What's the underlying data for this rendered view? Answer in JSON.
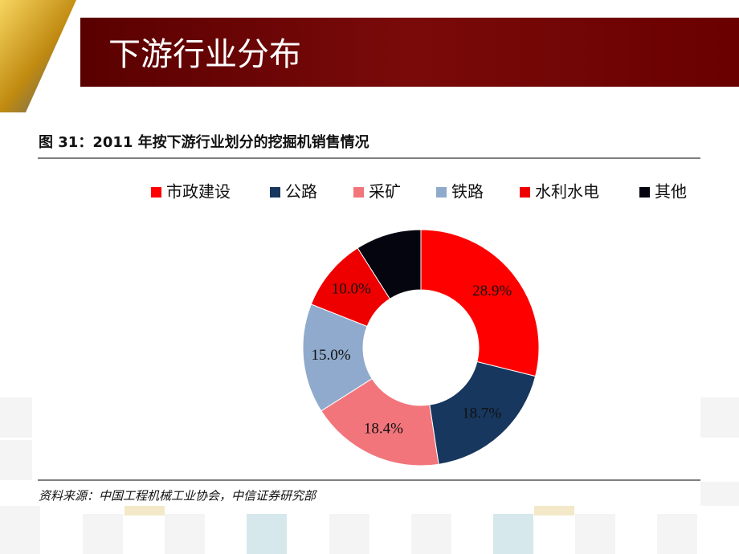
{
  "slide_title": "下游行业分布",
  "chart_data": {
    "type": "donut",
    "title": "图 31：2011 年按下游行业划分的挖掘机销售情况",
    "source": "资料来源：中国工程机械工业协会，中信证券研究部",
    "categories": [
      "市政建设",
      "公路",
      "采矿",
      "铁路",
      "水利水电",
      "其他"
    ],
    "values": [
      28.9,
      18.7,
      18.4,
      15.0,
      10.0,
      9.0
    ],
    "value_labels": [
      "28.9%",
      "18.7%",
      "18.4%",
      "15.0%",
      "10.0%",
      null
    ],
    "colors": [
      "#ff0000",
      "#17375e",
      "#f2757c",
      "#8faacc",
      "#ee0000",
      "#050510"
    ],
    "legend": "top"
  }
}
